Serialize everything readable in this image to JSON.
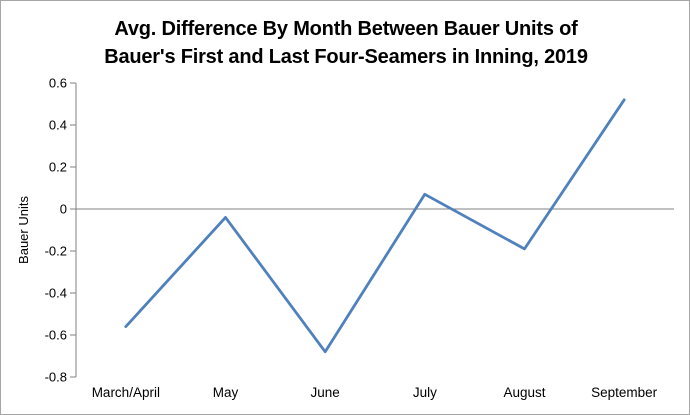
{
  "chart": {
    "title_lines": [
      "Avg. Difference By Month Between Bauer Units of",
      "Bauer's First and Last Four-Seamers in Inning, 2019"
    ]
  },
  "chart_data": {
    "type": "line",
    "title": "Avg. Difference By Month Between Bauer Units of Bauer's First and Last Four-Seamers in Inning, 2019",
    "categories": [
      "March/April",
      "May",
      "June",
      "July",
      "August",
      "September"
    ],
    "values": [
      -0.56,
      -0.04,
      -0.68,
      0.07,
      -0.19,
      0.52
    ],
    "xlabel": "",
    "ylabel": "Bauer Units",
    "ylim": [
      -0.8,
      0.6
    ],
    "ytick_interval": 0.2,
    "ytick_labels": [
      "0.6",
      "0.4",
      "0.2",
      "0",
      "-0.2",
      "-0.4",
      "-0.6",
      "-0.8"
    ],
    "grid": false,
    "legend_position": "none",
    "zero_line": true,
    "colors": {
      "line": "#4F81BD",
      "axis": "#808080",
      "text": "#000000",
      "background": "#FFFFFF",
      "frame_border": "#A6A6A6"
    }
  }
}
